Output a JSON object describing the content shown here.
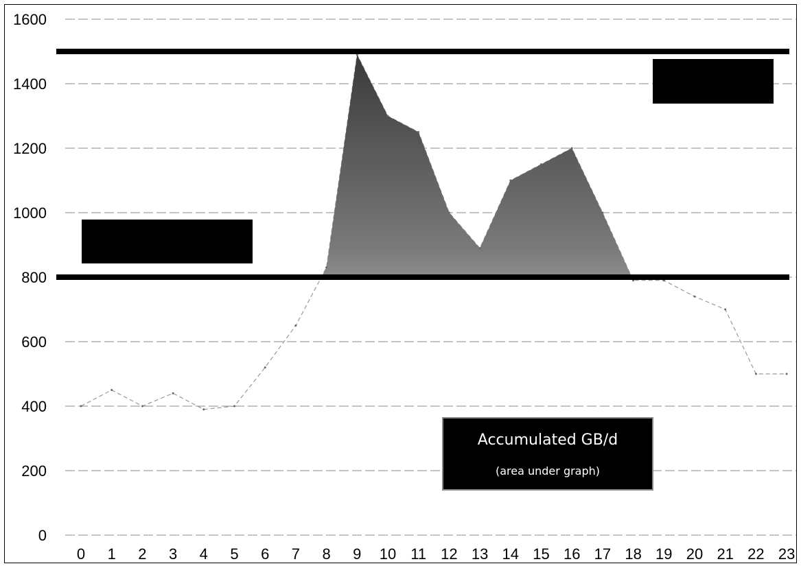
{
  "chart_data": {
    "type": "area",
    "x": [
      0,
      1,
      2,
      3,
      4,
      5,
      6,
      7,
      8,
      9,
      10,
      11,
      12,
      13,
      14,
      15,
      16,
      17,
      18,
      19,
      20,
      21,
      22,
      23
    ],
    "series": [
      {
        "values": [
          400,
          450,
          400,
          440,
          390,
          400,
          520,
          650,
          830,
          1490,
          1300,
          1250,
          1000,
          890,
          1100,
          1150,
          1200,
          1000,
          790,
          790,
          740,
          700,
          500,
          500
        ]
      }
    ],
    "ylim": [
      0,
      1600
    ],
    "yticks": [
      0,
      200,
      400,
      600,
      800,
      1000,
      1200,
      1400,
      1600
    ],
    "reference_lines": [
      800,
      1500
    ],
    "grid": true,
    "annotation": {
      "title": "Accumulated GB/d",
      "subtitle": "(area under graph)"
    },
    "colors": {
      "area": "#444444",
      "line": "#999999",
      "reference": "#000000",
      "grid": "#888888"
    }
  }
}
